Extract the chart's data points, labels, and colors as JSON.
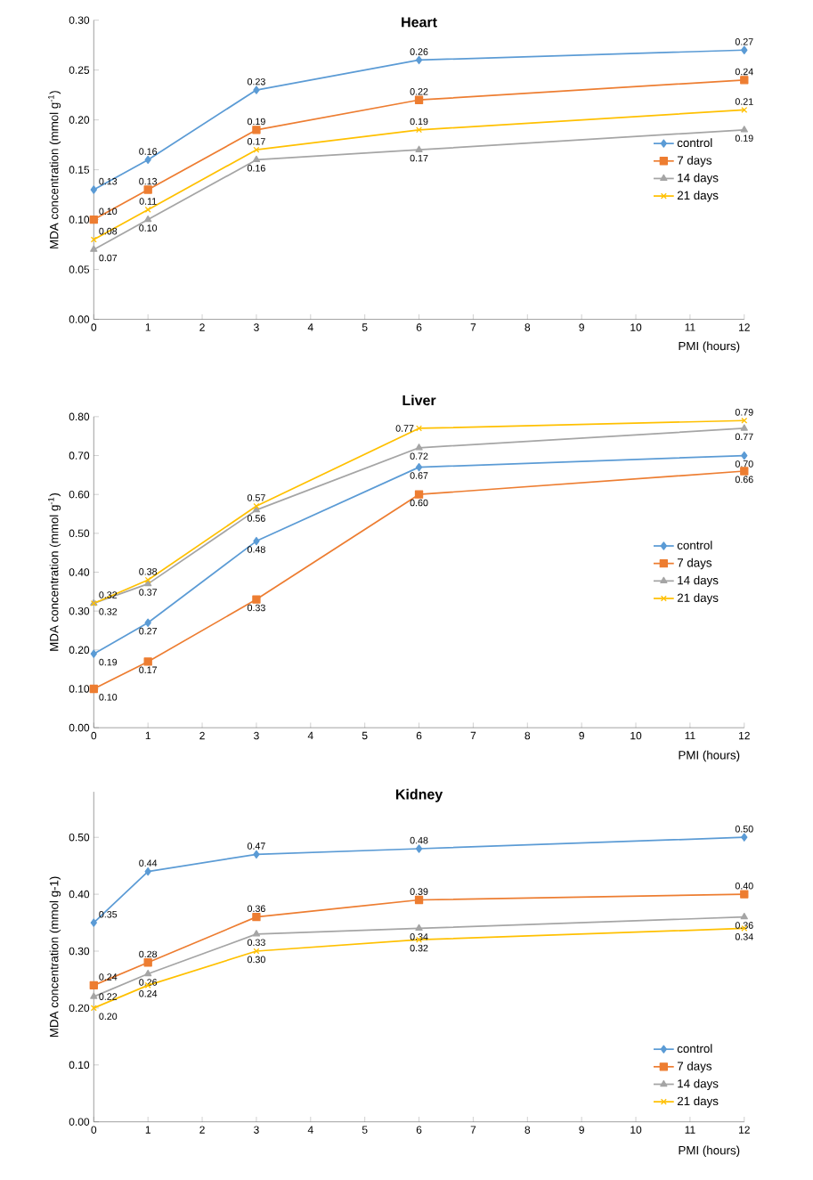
{
  "chart_data": [
    {
      "type": "line",
      "title": "Heart",
      "xlabel": "PMI (hours)",
      "ylabel": "MDA concentration (mmol g$^{-1}$)",
      "x": [
        0,
        1,
        3,
        6,
        12
      ],
      "xlim": [
        0,
        12
      ],
      "xticks": [
        0,
        1,
        2,
        3,
        4,
        5,
        6,
        7,
        8,
        9,
        10,
        11,
        12
      ],
      "ylim": [
        0,
        0.3
      ],
      "yticks": [
        {
          "value": 0,
          "label": "0.00"
        },
        {
          "value": 0.05,
          "label": "0.05"
        },
        {
          "value": 0.1,
          "label": "0.10"
        },
        {
          "value": 0.15,
          "label": "0.15"
        },
        {
          "value": 0.2,
          "label": "0.20"
        },
        {
          "value": 0.25,
          "label": "0.25"
        },
        {
          "value": 0.3,
          "label": "0.30"
        }
      ],
      "legend": "right",
      "grid": false,
      "series": [
        {
          "name": "control",
          "color": "#5b9bd5",
          "marker": "diamond",
          "values": [
            0.13,
            0.16,
            0.23,
            0.26,
            0.27
          ],
          "value_labels": [
            "0.13",
            "0.16",
            "0.23",
            "0.26",
            "0.27"
          ]
        },
        {
          "name": "7 days",
          "color": "#ed7d31",
          "marker": "square",
          "values": [
            0.1,
            0.13,
            0.19,
            0.22,
            0.24
          ],
          "value_labels": [
            "0.10",
            "0.13",
            "0.19",
            "0.22",
            "0.24"
          ]
        },
        {
          "name": "14 days",
          "color": "#a5a5a5",
          "marker": "triangle",
          "values": [
            0.07,
            0.1,
            0.16,
            0.17,
            0.19
          ],
          "value_labels": [
            "0.07",
            "0.10",
            "0.16",
            "0.17",
            "0.19"
          ]
        },
        {
          "name": "21 days",
          "color": "#ffc000",
          "marker": "cross",
          "values": [
            0.08,
            0.11,
            0.17,
            0.19,
            0.21
          ],
          "value_labels": [
            "0.08",
            "0.11",
            "0.17",
            "0.19",
            "0.21"
          ]
        }
      ]
    },
    {
      "type": "line",
      "title": "Liver",
      "xlabel": "PMI (hours)",
      "ylabel": "MDA concentration (mmol g$^{-1}$)",
      "x": [
        0,
        1,
        3,
        6,
        12
      ],
      "xlim": [
        0,
        12
      ],
      "xticks": [
        0,
        1,
        2,
        3,
        4,
        5,
        6,
        7,
        8,
        9,
        10,
        11,
        12
      ],
      "ylim": [
        0,
        0.8
      ],
      "yticks": [
        {
          "value": 0,
          "label": "0.00"
        },
        {
          "value": 0.1,
          "label": "0.10"
        },
        {
          "value": 0.2,
          "label": "0.20"
        },
        {
          "value": 0.3,
          "label": "0.30"
        },
        {
          "value": 0.4,
          "label": "0.40"
        },
        {
          "value": 0.5,
          "label": "0.50"
        },
        {
          "value": 0.6,
          "label": "0.60"
        },
        {
          "value": 0.7,
          "label": "0.70"
        },
        {
          "value": 0.8,
          "label": "0.80"
        }
      ],
      "legend": "right",
      "grid": false,
      "series": [
        {
          "name": "control",
          "color": "#5b9bd5",
          "marker": "diamond",
          "values": [
            0.19,
            0.27,
            0.48,
            0.67,
            0.7
          ],
          "value_labels": [
            "0.19",
            "0.27",
            "0.48",
            "0.67",
            "0.70"
          ]
        },
        {
          "name": "7 days",
          "color": "#ed7d31",
          "marker": "square",
          "values": [
            0.1,
            0.17,
            0.33,
            0.6,
            0.66
          ],
          "value_labels": [
            "0.10",
            "0.17",
            "0.33",
            "0.60",
            "0.66"
          ]
        },
        {
          "name": "14 days",
          "color": "#a5a5a5",
          "marker": "triangle",
          "values": [
            0.32,
            0.37,
            0.56,
            0.72,
            0.77
          ],
          "value_labels": [
            "0.32",
            "0.37",
            "0.56",
            "0.72",
            "0.77"
          ]
        },
        {
          "name": "21 days",
          "color": "#ffc000",
          "marker": "cross",
          "values": [
            0.32,
            0.38,
            0.57,
            0.77,
            0.79
          ],
          "value_labels": [
            "0.32",
            "0.38",
            "0.57",
            "0.77",
            "0.79"
          ]
        }
      ]
    },
    {
      "type": "line",
      "title": "Kidney",
      "xlabel": "PMI (hours)",
      "ylabel": "MDA concentration (mmol g-1)",
      "x": [
        0,
        1,
        3,
        6,
        12
      ],
      "xlim": [
        0,
        12
      ],
      "xticks": [
        0,
        1,
        2,
        3,
        4,
        5,
        6,
        7,
        8,
        9,
        10,
        11,
        12
      ],
      "ylim": [
        0,
        0.58
      ],
      "yticks": [
        {
          "value": 0,
          "label": "0.00"
        },
        {
          "value": 0.1,
          "label": "0.10"
        },
        {
          "value": 0.2,
          "label": "0.20"
        },
        {
          "value": 0.3,
          "label": "0.30"
        },
        {
          "value": 0.4,
          "label": "0.40"
        },
        {
          "value": 0.5,
          "label": "0.50"
        }
      ],
      "legend": "bottom right",
      "grid": false,
      "series": [
        {
          "name": "control",
          "color": "#5b9bd5",
          "marker": "diamond",
          "values": [
            0.35,
            0.44,
            0.47,
            0.48,
            0.5
          ],
          "value_labels": [
            "0.35",
            "0.44",
            "0.47",
            "0.48",
            "0.50"
          ]
        },
        {
          "name": "7 days",
          "color": "#ed7d31",
          "marker": "square",
          "values": [
            0.24,
            0.28,
            0.36,
            0.39,
            0.4
          ],
          "value_labels": [
            "0.24",
            "0.28",
            "0.36",
            "0.39",
            "0.40"
          ]
        },
        {
          "name": "14 days",
          "color": "#a5a5a5",
          "marker": "triangle",
          "values": [
            0.22,
            0.26,
            0.33,
            0.34,
            0.36
          ],
          "value_labels": [
            "0.22",
            "0.26",
            "0.33",
            "0.34",
            "0.36"
          ]
        },
        {
          "name": "21 days",
          "color": "#ffc000",
          "marker": "cross",
          "values": [
            0.2,
            0.24,
            0.3,
            0.32,
            0.34
          ],
          "value_labels": [
            "0.20",
            "0.24",
            "0.30",
            "0.32",
            "0.34"
          ]
        }
      ]
    }
  ]
}
